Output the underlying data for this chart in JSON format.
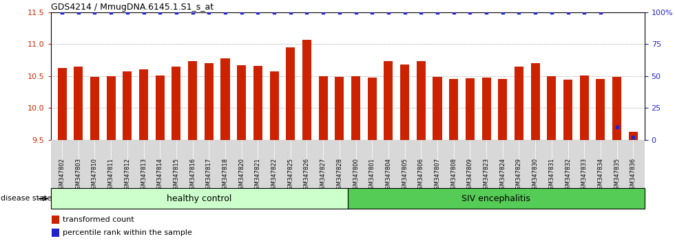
{
  "title": "GDS4214 / MmugDNA.6145.1.S1_s_at",
  "samples": [
    "GSM347802",
    "GSM347803",
    "GSM347810",
    "GSM347811",
    "GSM347812",
    "GSM347813",
    "GSM347814",
    "GSM347815",
    "GSM347816",
    "GSM347817",
    "GSM347818",
    "GSM347820",
    "GSM347821",
    "GSM347822",
    "GSM347825",
    "GSM347826",
    "GSM347827",
    "GSM347828",
    "GSM347800",
    "GSM347801",
    "GSM347804",
    "GSM347805",
    "GSM347806",
    "GSM347807",
    "GSM347808",
    "GSM347809",
    "GSM347823",
    "GSM347824",
    "GSM347829",
    "GSM347830",
    "GSM347831",
    "GSM347832",
    "GSM347833",
    "GSM347834",
    "GSM347835",
    "GSM347836"
  ],
  "bar_values": [
    10.62,
    10.65,
    10.49,
    10.5,
    10.57,
    10.6,
    10.51,
    10.65,
    10.73,
    10.7,
    10.78,
    10.67,
    10.66,
    10.57,
    10.95,
    11.07,
    10.5,
    10.48,
    10.5,
    10.47,
    10.73,
    10.68,
    10.73,
    10.48,
    10.45,
    10.46,
    10.47,
    10.45,
    10.65,
    10.7,
    10.5,
    10.44,
    10.51,
    10.45,
    10.49,
    9.62
  ],
  "percentile_values": [
    100,
    100,
    100,
    100,
    100,
    100,
    100,
    100,
    100,
    100,
    100,
    100,
    100,
    100,
    100,
    100,
    100,
    100,
    100,
    100,
    100,
    100,
    100,
    100,
    100,
    100,
    100,
    100,
    100,
    100,
    100,
    100,
    100,
    100,
    10,
    2
  ],
  "healthy_count": 18,
  "siv_count": 18,
  "bar_color": "#cc2200",
  "percentile_color": "#2222cc",
  "bar_bottom": 9.5,
  "ylim_left": [
    9.5,
    11.5
  ],
  "ylim_right": [
    0,
    100
  ],
  "yticks_left": [
    9.5,
    10.0,
    10.5,
    11.0,
    11.5
  ],
  "yticks_right": [
    0,
    25,
    50,
    75,
    100
  ],
  "ytick_labels_right": [
    "0",
    "25",
    "50",
    "75",
    "100%"
  ],
  "group1_label": "healthy control",
  "group2_label": "SIV encephalitis",
  "group1_color": "#ccffcc",
  "group2_color": "#55cc55",
  "legend_bar_label": "transformed count",
  "legend_dot_label": "percentile rank within the sample",
  "disease_state_label": "disease state"
}
